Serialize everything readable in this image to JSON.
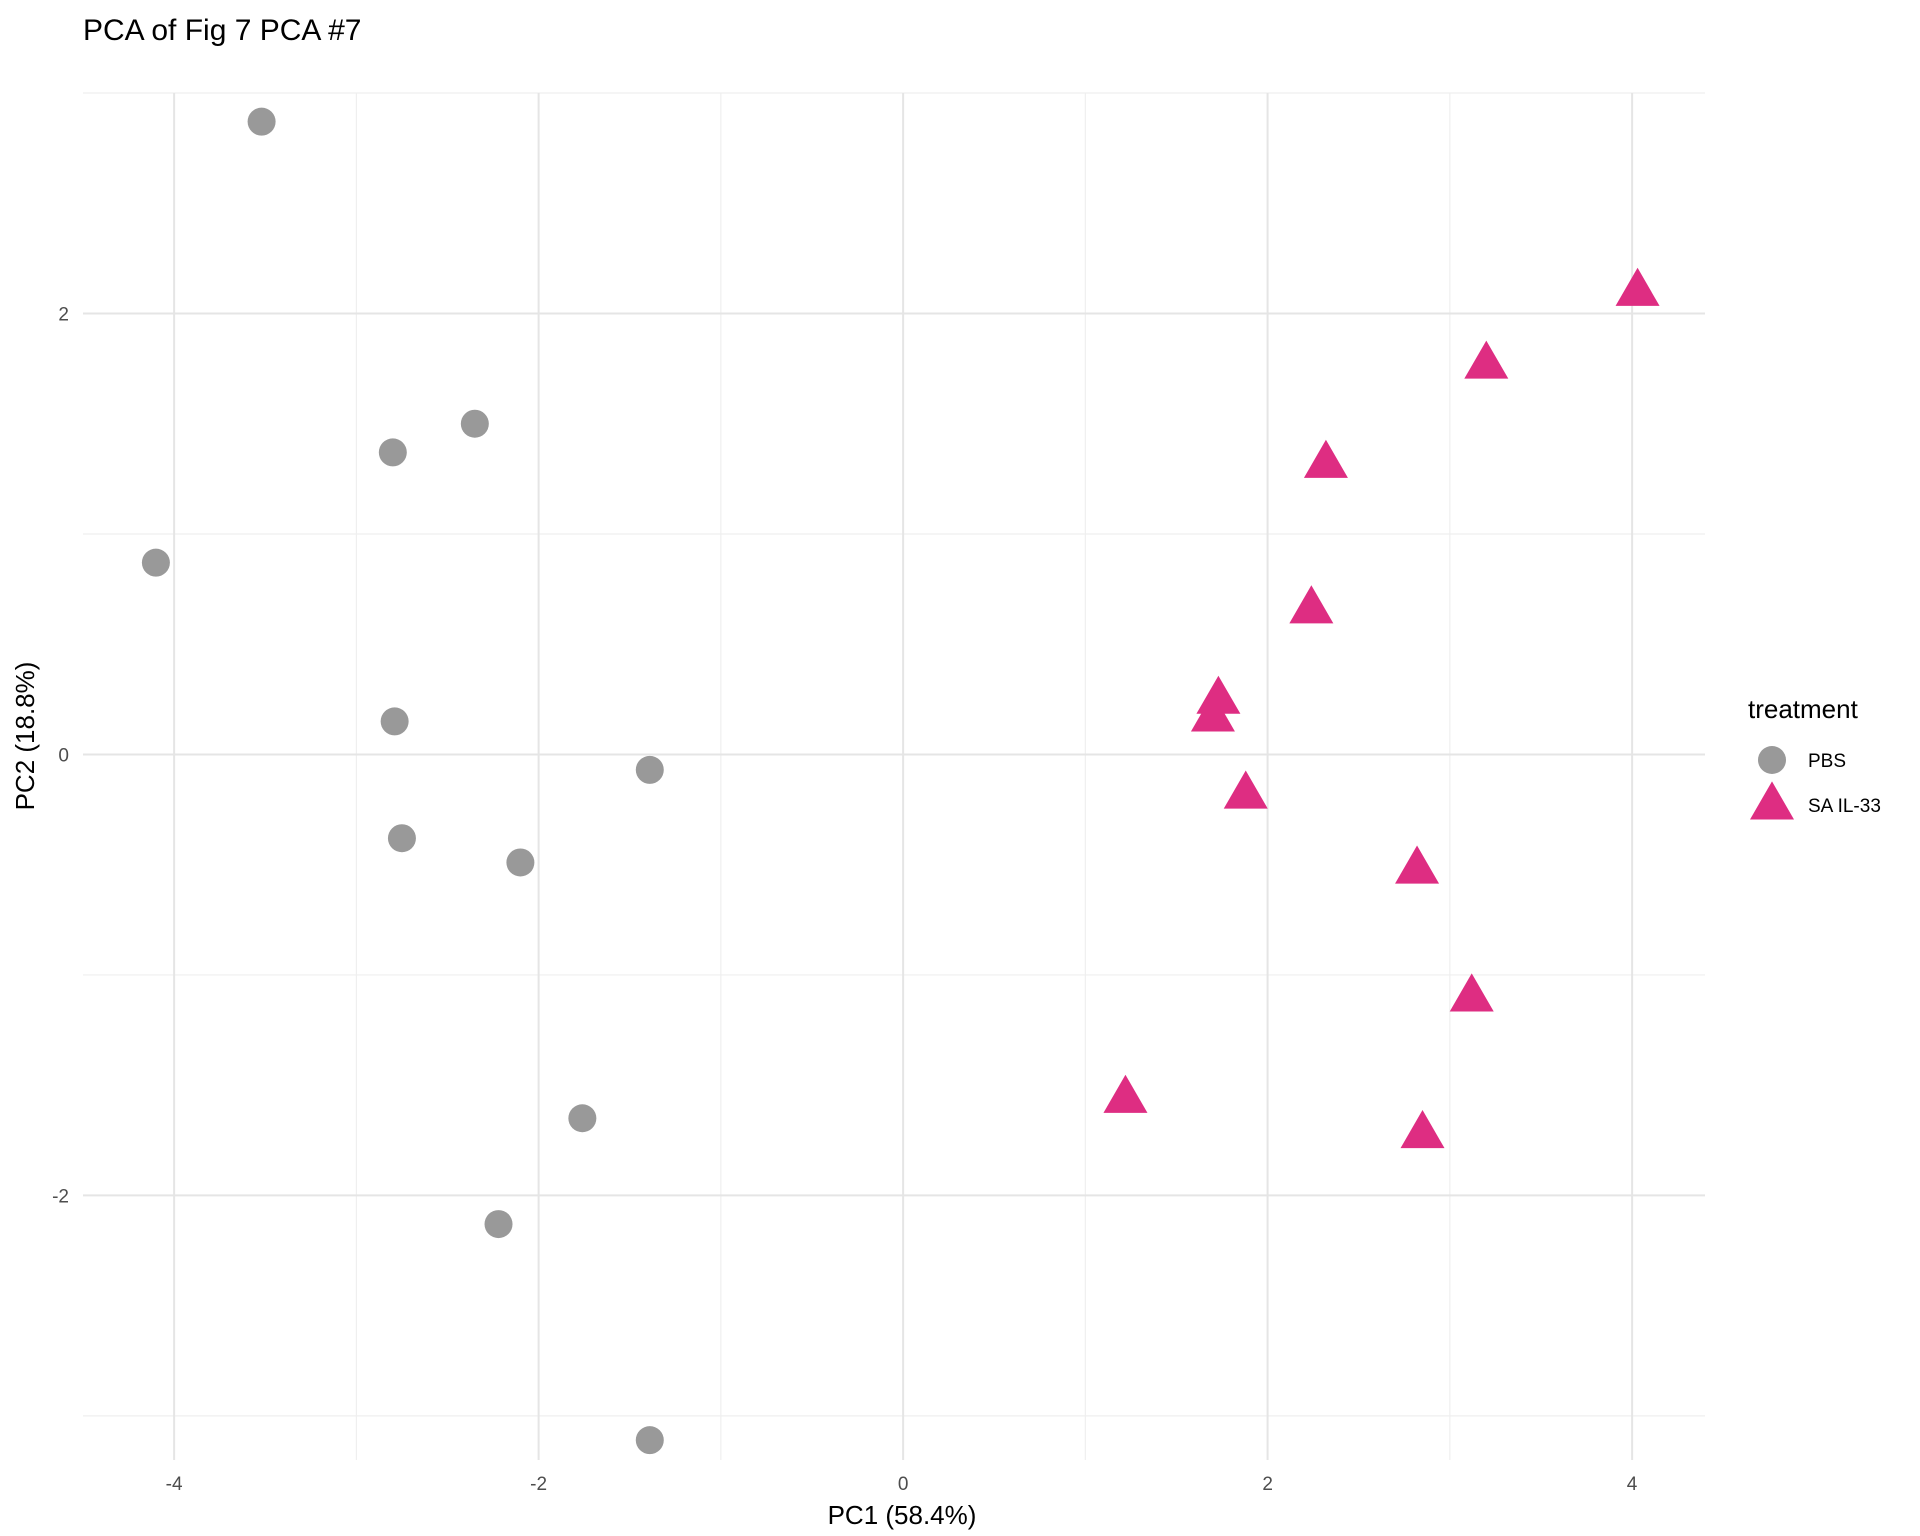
{
  "chart_data": {
    "type": "scatter",
    "title": "PCA of Fig 7 PCA #7",
    "xlabel": "PC1 (58.4%)",
    "ylabel": "PC2 (18.8%)",
    "xlim": [
      -4.5,
      4.4
    ],
    "ylim": [
      -3.2,
      3.0
    ],
    "x_ticks": [
      -4,
      -2,
      0,
      2,
      4
    ],
    "y_ticks": [
      -2,
      0,
      2
    ],
    "x_tick_labels": [
      "-4",
      "-2",
      "0",
      "2",
      "4"
    ],
    "y_tick_labels": [
      "-2",
      "0",
      "2"
    ],
    "grid": true,
    "legend": {
      "title": "treatment",
      "position": "right"
    },
    "series": [
      {
        "name": "PBS",
        "color": "#999999",
        "marker": "circle",
        "points": [
          {
            "x": -3.52,
            "y": 2.87
          },
          {
            "x": -2.35,
            "y": 1.5
          },
          {
            "x": -2.8,
            "y": 1.37
          },
          {
            "x": -4.1,
            "y": 0.87
          },
          {
            "x": -2.79,
            "y": 0.15
          },
          {
            "x": -1.39,
            "y": -0.07
          },
          {
            "x": -2.75,
            "y": -0.38
          },
          {
            "x": -2.1,
            "y": -0.49
          },
          {
            "x": -1.76,
            "y": -1.65
          },
          {
            "x": -2.22,
            "y": -2.13
          },
          {
            "x": -1.39,
            "y": -3.11
          }
        ]
      },
      {
        "name": "SA IL-33",
        "color": "#DE2D82",
        "marker": "triangle",
        "points": [
          {
            "x": 4.03,
            "y": 2.1
          },
          {
            "x": 3.2,
            "y": 1.77
          },
          {
            "x": 2.32,
            "y": 1.32
          },
          {
            "x": 2.24,
            "y": 0.66
          },
          {
            "x": 1.73,
            "y": 0.25
          },
          {
            "x": 1.7,
            "y": 0.17
          },
          {
            "x": 1.88,
            "y": -0.18
          },
          {
            "x": 2.82,
            "y": -0.52
          },
          {
            "x": 3.12,
            "y": -1.1
          },
          {
            "x": 1.22,
            "y": -1.56
          },
          {
            "x": 2.85,
            "y": -1.72
          }
        ]
      }
    ]
  }
}
